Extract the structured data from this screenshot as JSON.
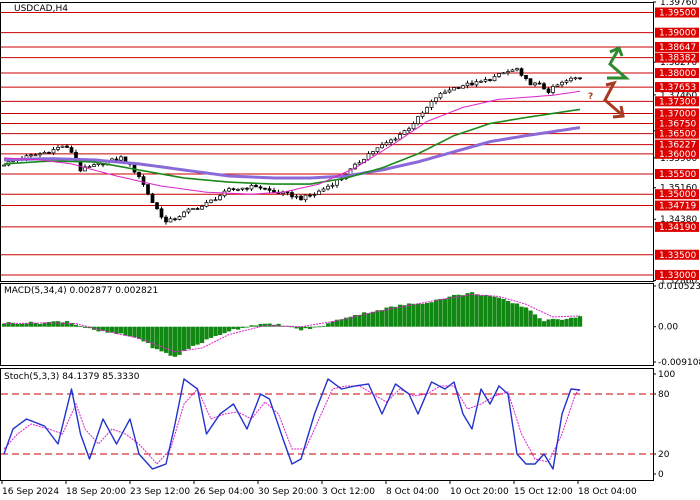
{
  "colors": {
    "red_line": "#cc0000",
    "green_ma": "#1a8a1a",
    "purple_ma": "#8a6ad8",
    "magenta_ma": "#dd22cc",
    "macd_bar": "#118811",
    "macd_signal": "#dd22cc",
    "stoch_main": "#2233cc",
    "stoch_signal": "#dd22cc",
    "axis_bg_label": "#dd0000",
    "arrow_up": "#2d8a2d",
    "arrow_down": "#a63a22"
  },
  "chart_data": [
    {
      "type": "candlestick",
      "title": "USDCAD,H4",
      "ylim": [
        1.3285,
        1.3976
      ],
      "y_ticks_plain": [
        "1.39760",
        "1.38270",
        "1.37460",
        "1.36570",
        "1.35900",
        "1.35160",
        "1.34380",
        "1.32860"
      ],
      "y_tick_values": [
        1.3976,
        1.3827,
        1.3746,
        1.3657,
        1.359,
        1.3516,
        1.3438,
        1.3286
      ],
      "levels": [
        {
          "label": "1.39500",
          "value": 1.395
        },
        {
          "label": "1.39000",
          "value": 1.39
        },
        {
          "label": "1.38647",
          "value": 1.38647
        },
        {
          "label": "1.38382",
          "value": 1.38382
        },
        {
          "label": "1.38000",
          "value": 1.38
        },
        {
          "label": "1.37653",
          "value": 1.37653
        },
        {
          "label": "1.37300",
          "value": 1.373
        },
        {
          "label": "1.37000",
          "value": 1.37
        },
        {
          "label": "1.36750",
          "value": 1.3675
        },
        {
          "label": "1.36500",
          "value": 1.365
        },
        {
          "label": "1.36227",
          "value": 1.36227
        },
        {
          "label": "1.36000",
          "value": 1.36
        },
        {
          "label": "1.35500",
          "value": 1.355
        },
        {
          "label": "1.35000",
          "value": 1.35
        },
        {
          "label": "1.34719",
          "value": 1.34719
        },
        {
          "label": "1.34190",
          "value": 1.3419
        },
        {
          "label": "1.33500",
          "value": 1.335
        },
        {
          "label": "1.33000",
          "value": 1.33
        }
      ],
      "close_anchors": [
        [
          0,
          1.3575
        ],
        [
          4,
          1.359
        ],
        [
          8,
          1.36
        ],
        [
          11,
          1.361
        ],
        [
          13,
          1.362
        ],
        [
          15,
          1.3605
        ],
        [
          17,
          1.356
        ],
        [
          20,
          1.357
        ],
        [
          23,
          1.358
        ],
        [
          26,
          1.359
        ],
        [
          28,
          1.357
        ],
        [
          30,
          1.3545
        ],
        [
          33,
          1.348
        ],
        [
          36,
          1.343
        ],
        [
          38,
          1.344
        ],
        [
          41,
          1.346
        ],
        [
          44,
          1.347
        ],
        [
          47,
          1.349
        ],
        [
          50,
          1.351
        ],
        [
          53,
          1.3515
        ],
        [
          56,
          1.352
        ],
        [
          60,
          1.3505
        ],
        [
          63,
          1.35
        ],
        [
          66,
          1.349
        ],
        [
          69,
          1.35
        ],
        [
          72,
          1.352
        ],
        [
          75,
          1.354
        ],
        [
          78,
          1.357
        ],
        [
          81,
          1.36
        ],
        [
          84,
          1.362
        ],
        [
          87,
          1.364
        ],
        [
          90,
          1.3665
        ],
        [
          93,
          1.37
        ],
        [
          96,
          1.374
        ],
        [
          99,
          1.376
        ],
        [
          102,
          1.377
        ],
        [
          105,
          1.3775
        ],
        [
          108,
          1.3785
        ],
        [
          111,
          1.38
        ],
        [
          114,
          1.381
        ],
        [
          115,
          1.379
        ],
        [
          117,
          1.3775
        ],
        [
          119,
          1.377
        ],
        [
          121,
          1.3755
        ],
        [
          123,
          1.377
        ],
        [
          126,
          1.3785
        ],
        [
          128,
          1.379
        ]
      ],
      "moving_averages": [
        {
          "color_key": "magenta_ma",
          "anchors": [
            [
              0,
              1.359
            ],
            [
              8,
              1.3585
            ],
            [
              15,
              1.3575
            ],
            [
              25,
              1.3545
            ],
            [
              35,
              1.352
            ],
            [
              45,
              1.3505
            ],
            [
              55,
              1.35
            ],
            [
              62,
              1.3505
            ],
            [
              70,
              1.3525
            ],
            [
              78,
              1.3565
            ],
            [
              86,
              1.362
            ],
            [
              94,
              1.368
            ],
            [
              102,
              1.3715
            ],
            [
              110,
              1.3735
            ],
            [
              116,
              1.374
            ],
            [
              122,
              1.3745
            ],
            [
              128,
              1.3755
            ]
          ]
        },
        {
          "color_key": "green_ma",
          "anchors": [
            [
              0,
              1.3575
            ],
            [
              10,
              1.3582
            ],
            [
              20,
              1.358
            ],
            [
              30,
              1.356
            ],
            [
              40,
              1.354
            ],
            [
              50,
              1.353
            ],
            [
              60,
              1.3525
            ],
            [
              68,
              1.3525
            ],
            [
              76,
              1.354
            ],
            [
              84,
              1.3565
            ],
            [
              92,
              1.36
            ],
            [
              100,
              1.3645
            ],
            [
              108,
              1.3675
            ],
            [
              116,
              1.369
            ],
            [
              122,
              1.37
            ],
            [
              128,
              1.371
            ]
          ]
        },
        {
          "color_key": "purple_ma",
          "anchors": [
            [
              0,
              1.3585
            ],
            [
              10,
              1.3588
            ],
            [
              20,
              1.3585
            ],
            [
              30,
              1.3575
            ],
            [
              40,
              1.356
            ],
            [
              50,
              1.3545
            ],
            [
              60,
              1.354
            ],
            [
              68,
              1.354
            ],
            [
              76,
              1.3545
            ],
            [
              84,
              1.356
            ],
            [
              92,
              1.358
            ],
            [
              100,
              1.3605
            ],
            [
              108,
              1.363
            ],
            [
              116,
              1.3645
            ],
            [
              122,
              1.3655
            ],
            [
              128,
              1.3665
            ]
          ]
        }
      ]
    },
    {
      "type": "bar",
      "title": "MACD(5,34,4) 0.002877 0.002821",
      "ylim": [
        -0.0091,
        0.0105
      ],
      "y_ticks": [
        "0.010523",
        "0.00",
        "-0.009108"
      ],
      "y_tick_values": [
        0.0105,
        0.0,
        -0.0091
      ],
      "hist_anchors": [
        [
          0,
          0.001
        ],
        [
          8,
          0.001
        ],
        [
          14,
          0.0015
        ],
        [
          17,
          0.0002
        ],
        [
          20,
          -0.001
        ],
        [
          26,
          -0.002
        ],
        [
          30,
          -0.003
        ],
        [
          34,
          -0.006
        ],
        [
          38,
          -0.0078
        ],
        [
          42,
          -0.005
        ],
        [
          46,
          -0.003
        ],
        [
          50,
          -0.001
        ],
        [
          56,
          0.0006
        ],
        [
          62,
          0.0005
        ],
        [
          66,
          -0.0008
        ],
        [
          70,
          0.0
        ],
        [
          76,
          0.0025
        ],
        [
          82,
          0.004
        ],
        [
          88,
          0.0055
        ],
        [
          94,
          0.0063
        ],
        [
          100,
          0.008
        ],
        [
          104,
          0.0087
        ],
        [
          108,
          0.008
        ],
        [
          112,
          0.0065
        ],
        [
          116,
          0.005
        ],
        [
          120,
          0.0015
        ],
        [
          124,
          0.002
        ],
        [
          128,
          0.0028
        ]
      ],
      "signal_anchors": [
        [
          0,
          0.0008
        ],
        [
          10,
          0.001
        ],
        [
          16,
          0.0008
        ],
        [
          22,
          -0.001
        ],
        [
          30,
          -0.003
        ],
        [
          38,
          -0.0065
        ],
        [
          44,
          -0.0055
        ],
        [
          50,
          -0.002
        ],
        [
          58,
          0.0003
        ],
        [
          66,
          0.0
        ],
        [
          74,
          0.0015
        ],
        [
          82,
          0.0037
        ],
        [
          90,
          0.0055
        ],
        [
          98,
          0.0072
        ],
        [
          104,
          0.0083
        ],
        [
          110,
          0.0078
        ],
        [
          116,
          0.0058
        ],
        [
          122,
          0.0025
        ],
        [
          128,
          0.0028
        ]
      ]
    },
    {
      "type": "line",
      "title": "Stoch(5,3,3) 84.1379 85.3330",
      "ylim": [
        0,
        100
      ],
      "y_ticks": [
        "100",
        "80",
        "20",
        "0"
      ],
      "y_tick_values": [
        100,
        80,
        20,
        0
      ],
      "x_labels": [
        "16 Sep 2024",
        "18 Sep 20:00",
        "23 Sep 12:00",
        "26 Sep 04:00",
        "30 Sep 20:00",
        "3 Oct 12:00",
        "8 Oct 04:00",
        "10 Oct 20:00",
        "15 Oct 12:00",
        "18 Oct 04:00"
      ],
      "main_anchors": [
        [
          0,
          20
        ],
        [
          2,
          45
        ],
        [
          5,
          55
        ],
        [
          9,
          48
        ],
        [
          12,
          30
        ],
        [
          15,
          85
        ],
        [
          17,
          40
        ],
        [
          19,
          15
        ],
        [
          22,
          55
        ],
        [
          25,
          30
        ],
        [
          28,
          55
        ],
        [
          30,
          20
        ],
        [
          33,
          5
        ],
        [
          36,
          10
        ],
        [
          38,
          50
        ],
        [
          40,
          95
        ],
        [
          43,
          85
        ],
        [
          45,
          40
        ],
        [
          48,
          60
        ],
        [
          51,
          70
        ],
        [
          54,
          45
        ],
        [
          57,
          80
        ],
        [
          59,
          75
        ],
        [
          62,
          35
        ],
        [
          64,
          10
        ],
        [
          66,
          15
        ],
        [
          69,
          60
        ],
        [
          72,
          95
        ],
        [
          75,
          85
        ],
        [
          78,
          88
        ],
        [
          81,
          90
        ],
        [
          84,
          60
        ],
        [
          87,
          90
        ],
        [
          90,
          80
        ],
        [
          92,
          60
        ],
        [
          95,
          92
        ],
        [
          98,
          85
        ],
        [
          100,
          92
        ],
        [
          102,
          60
        ],
        [
          104,
          45
        ],
        [
          106,
          85
        ],
        [
          108,
          70
        ],
        [
          110,
          88
        ],
        [
          112,
          80
        ],
        [
          114,
          20
        ],
        [
          116,
          10
        ],
        [
          118,
          10
        ],
        [
          120,
          20
        ],
        [
          122,
          5
        ],
        [
          124,
          60
        ],
        [
          126,
          85
        ],
        [
          128,
          84
        ]
      ],
      "signal_anchors": [
        [
          0,
          25
        ],
        [
          3,
          40
        ],
        [
          6,
          50
        ],
        [
          10,
          45
        ],
        [
          13,
          40
        ],
        [
          16,
          70
        ],
        [
          18,
          45
        ],
        [
          21,
          30
        ],
        [
          24,
          45
        ],
        [
          27,
          40
        ],
        [
          30,
          30
        ],
        [
          34,
          10
        ],
        [
          37,
          25
        ],
        [
          40,
          70
        ],
        [
          43,
          85
        ],
        [
          46,
          55
        ],
        [
          49,
          60
        ],
        [
          52,
          62
        ],
        [
          55,
          55
        ],
        [
          58,
          72
        ],
        [
          61,
          60
        ],
        [
          64,
          25
        ],
        [
          67,
          25
        ],
        [
          70,
          55
        ],
        [
          73,
          85
        ],
        [
          76,
          88
        ],
        [
          79,
          88
        ],
        [
          82,
          80
        ],
        [
          85,
          72
        ],
        [
          88,
          85
        ],
        [
          91,
          78
        ],
        [
          94,
          80
        ],
        [
          97,
          88
        ],
        [
          100,
          88
        ],
        [
          103,
          65
        ],
        [
          106,
          70
        ],
        [
          109,
          78
        ],
        [
          112,
          82
        ],
        [
          115,
          40
        ],
        [
          118,
          15
        ],
        [
          121,
          12
        ],
        [
          124,
          40
        ],
        [
          127,
          80
        ],
        [
          128,
          85
        ]
      ]
    }
  ]
}
